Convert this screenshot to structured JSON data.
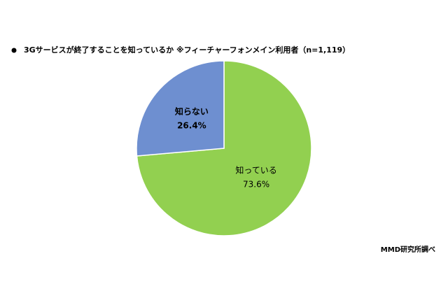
{
  "chart_data": {
    "type": "pie",
    "title": "3Gサービスが終了することを知っているか  ※フィーチャーフォンメイン利用者（n=1,119）",
    "categories": [
      "知っている",
      "知らない"
    ],
    "values": [
      73.6,
      26.4
    ],
    "value_labels": [
      "73.6%",
      "26.4%"
    ],
    "colors": [
      "#92d050",
      "#6e8fd0"
    ],
    "source": "MMD研究所調べ"
  }
}
